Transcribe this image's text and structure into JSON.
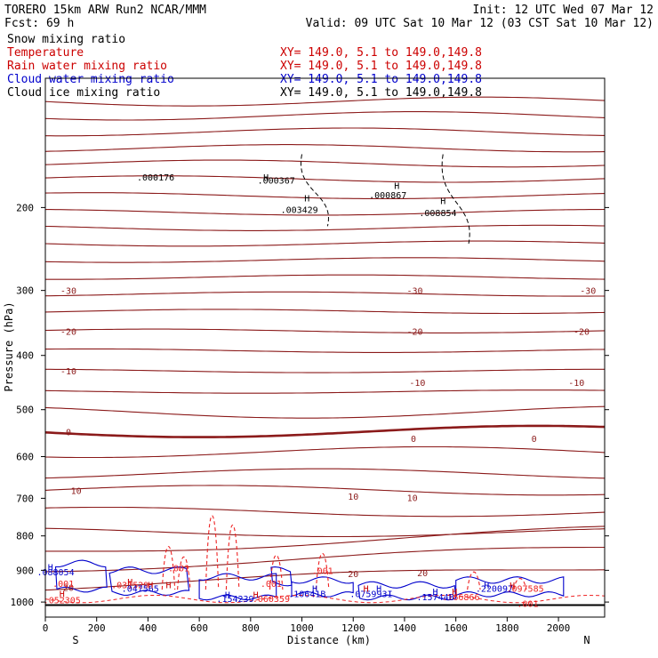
{
  "header": {
    "line1_left": "TORERO  15km ARW   Run2    NCAR/MMM",
    "line1_right": "Init: 12 UTC Wed 07 Mar 12",
    "line2_left": "Fcst:   69 h",
    "line2_right": "Valid: 09 UTC Sat 10 Mar 12 (03 CST Sat 10 Mar 12)"
  },
  "legend": [
    {
      "label": "Snow mixing ratio",
      "xy": "",
      "color": "#000000"
    },
    {
      "label": "Temperature",
      "xy": "XY= 149.0,  5.1 to 149.0,149.8",
      "color": "#cc0000"
    },
    {
      "label": "Rain water mixing ratio",
      "xy": "XY= 149.0,  5.1 to 149.0,149.8",
      "color": "#cc0000"
    },
    {
      "label": "Cloud water mixing ratio",
      "xy": "XY= 149.0,  5.1 to 149.0,149.8",
      "color": "#0000cc"
    },
    {
      "label": "Cloud ice mixing ratio",
      "xy": "XY= 149.0,  5.1 to 149.0,149.8",
      "color": "#000000"
    }
  ],
  "colors": {
    "temperature": "#8b1a1a",
    "rain": "#ee2222",
    "cloud_water": "#0000cc",
    "snow_ice": "#000000"
  },
  "chart_data": {
    "type": "line",
    "xlabel": "Distance (km)",
    "ylabel": "Pressure (hPa)",
    "xlim": [
      0,
      2180
    ],
    "ylim": [
      1050,
      100
    ],
    "y_scale": "log",
    "x_ticks": [
      0,
      200,
      400,
      600,
      800,
      1000,
      1200,
      1400,
      1600,
      1800,
      2000
    ],
    "y_ticks": [
      200,
      300,
      400,
      500,
      600,
      700,
      800,
      900,
      1000
    ],
    "x_end_labels": {
      "left": "S",
      "right": "N"
    },
    "temperature_labels": [
      {
        "x": 90,
        "p": 300,
        "text": "-30"
      },
      {
        "x": 1440,
        "p": 300,
        "text": "-30"
      },
      {
        "x": 2115,
        "p": 300,
        "text": "-30"
      },
      {
        "x": 90,
        "p": 360,
        "text": "-20"
      },
      {
        "x": 1440,
        "p": 360,
        "text": "-20"
      },
      {
        "x": 2090,
        "p": 360,
        "text": "-20"
      },
      {
        "x": 90,
        "p": 427,
        "text": "-10"
      },
      {
        "x": 1450,
        "p": 448,
        "text": "-10"
      },
      {
        "x": 2070,
        "p": 448,
        "text": "-10"
      },
      {
        "x": 90,
        "p": 545,
        "text": "0"
      },
      {
        "x": 1435,
        "p": 560,
        "text": "0"
      },
      {
        "x": 1905,
        "p": 560,
        "text": "0"
      },
      {
        "x": 120,
        "p": 680,
        "text": "10"
      },
      {
        "x": 1200,
        "p": 695,
        "text": "10"
      },
      {
        "x": 1430,
        "p": 698,
        "text": "10"
      },
      {
        "x": 90,
        "p": 953,
        "text": "20"
      },
      {
        "x": 1200,
        "p": 910,
        "text": "20"
      },
      {
        "x": 1470,
        "p": 907,
        "text": "20"
      }
    ],
    "snow_ice_labels": [
      {
        "x": 430,
        "p": 170,
        "text": ".000176"
      },
      {
        "x": 900,
        "p": 173,
        "text": ".000367"
      },
      {
        "x": 1335,
        "p": 187,
        "text": ".000867"
      },
      {
        "x": 990,
        "p": 202,
        "text": ".003429"
      },
      {
        "x": 1530,
        "p": 205,
        "text": ".008854"
      }
    ],
    "rain_labels": [
      {
        "x": 520,
        "p": 892,
        "text": ".001"
      },
      {
        "x": 1080,
        "p": 900,
        "text": ".001"
      },
      {
        "x": 880,
        "p": 940,
        "text": ".001"
      },
      {
        "x": 70,
        "p": 940,
        "text": ".001"
      },
      {
        "x": 330,
        "p": 944,
        "text": ".031529"
      },
      {
        "x": 65,
        "p": 993,
        "text": ".052305"
      },
      {
        "x": 880,
        "p": 988,
        "text": ".060359"
      },
      {
        "x": 1880,
        "p": 1004,
        "text": ".001"
      },
      {
        "x": 1620,
        "p": 983,
        "text": ".166866"
      },
      {
        "x": 1870,
        "p": 955,
        "text": ".097585"
      }
    ],
    "cloud_water_labels": [
      {
        "x": 40,
        "p": 905,
        "text": ".088054"
      },
      {
        "x": 370,
        "p": 955,
        "text": ".047565"
      },
      {
        "x": 740,
        "p": 988,
        "text": ".154239"
      },
      {
        "x": 1020,
        "p": 972,
        "text": ".10641B"
      },
      {
        "x": 1270,
        "p": 972,
        "text": ".075993I"
      },
      {
        "x": 1520,
        "p": 983,
        "text": ".15744B"
      },
      {
        "x": 1750,
        "p": 955,
        "text": ".220097"
      }
    ],
    "h_markers": [
      {
        "x": 860,
        "p": 170,
        "color": "#000000"
      },
      {
        "x": 1370,
        "p": 178,
        "color": "#000000"
      },
      {
        "x": 1020,
        "p": 190,
        "color": "#000000"
      },
      {
        "x": 1550,
        "p": 193,
        "color": "#000000"
      },
      {
        "x": 20,
        "p": 890,
        "color": "#0000cc"
      },
      {
        "x": 330,
        "p": 934,
        "color": "#cc0000"
      },
      {
        "x": 65,
        "p": 972,
        "color": "#cc0000"
      },
      {
        "x": 410,
        "p": 944,
        "color": "#cc0000"
      },
      {
        "x": 820,
        "p": 975,
        "color": "#cc0000"
      },
      {
        "x": 1050,
        "p": 955,
        "color": "#0000cc"
      },
      {
        "x": 1250,
        "p": 955,
        "color": "#cc0000"
      },
      {
        "x": 1300,
        "p": 955,
        "color": "#0000cc"
      },
      {
        "x": 1520,
        "p": 965,
        "color": "#0000cc"
      },
      {
        "x": 1595,
        "p": 965,
        "color": "#cc0000"
      },
      {
        "x": 1720,
        "p": 945,
        "color": "#0000cc"
      },
      {
        "x": 1820,
        "p": 945,
        "color": "#cc0000"
      },
      {
        "x": 710,
        "p": 975,
        "color": "#0000cc"
      },
      {
        "x": 480,
        "p": 944,
        "color": "#cc0000"
      }
    ]
  }
}
